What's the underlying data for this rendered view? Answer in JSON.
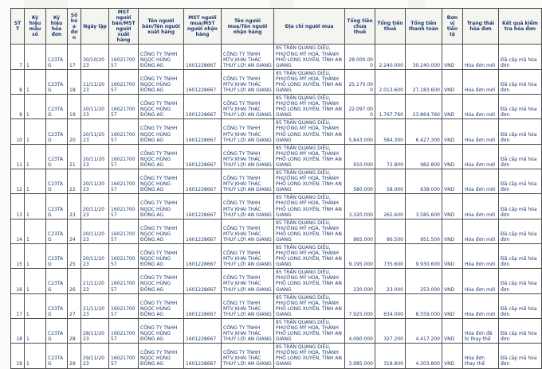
{
  "colors": {
    "text_navy": "#1e3a6d",
    "border": "#4d4d4d",
    "header_bg": "#f4f4f1",
    "page_bg": "#fbfbf9"
  },
  "table": {
    "columns": [
      "STT",
      "Ký hiệu mẫu số",
      "Ký hiệu hóa đơn",
      "Số hóa đơn",
      "Ngày lập",
      "MST người bán/MST người xuất hàng",
      "Tên người bán/Tên người xuất hàng",
      "MST người mua/MST người nhận hàng",
      "Tên người mua/Tên người nhận hàng",
      "Địa chỉ người mua",
      "Tổng tiền chưa thuế",
      "Tổng tiền thuế",
      "Tổng tiền thanh toán",
      "Đơn vị tiền tệ",
      "Trạng thái hóa đơn",
      "Kết quả kiểm tra hóa đơn"
    ],
    "rows": [
      [
        "7",
        "1",
        "C23TAG",
        "17",
        "30/10/2023",
        "1602170057",
        "CÔNG TY TNHH NGỌC HÙNG ĐỒNG AG",
        "1601228667",
        "CÔNG TY TNHH MTV KHAI THÁC THUỶ LỢI AN GIANG",
        "85 TRẦN QUANG DIỆU, PHƯỜNG MỸ HOÀ, THÀNH PHỐ LONG XUYÊN, TỈNH AN GIANG",
        "28.000.000",
        "2.240.000",
        "30.240.000",
        "VND",
        "Hóa đơn mới",
        "Đã cấp mã hóa đơn"
      ],
      [
        "8",
        "1",
        "C23TAG",
        "18",
        "11/11/2023",
        "1602170057",
        "CÔNG TY TNHH NGỌC HÙNG ĐỒNG AG",
        "1601228667",
        "CÔNG TY TNHH MTV KHAI THÁC THUỶ LỢI AN GIANG",
        "85 TRẦN QUANG DIỆU, PHƯỜNG MỸ HOÀ, THÀNH PHỐ LONG XUYÊN, TỈNH AN GIANG",
        "25.170.000",
        "2.013.600",
        "27.183.600",
        "VND",
        "Hóa đơn mới",
        "Đã cấp mã hóa đơn"
      ],
      [
        "9",
        "1",
        "C23TAG",
        "19",
        "20/11/2023",
        "1602170057",
        "CÔNG TY TNHH NGỌC HÙNG ĐỒNG AG",
        "1601228667",
        "CÔNG TY TNHH MTV KHAI THÁC THUỶ LỢI AN GIANG",
        "85 TRẦN QUANG DIỆU, PHƯỜNG MỸ HOÀ, THÀNH PHỐ LONG XUYÊN, TỈNH AN GIANG",
        "22.097.000",
        "1.767.760",
        "23.864.760",
        "VND",
        "Hóa đơn mới",
        "Đã cấp mã hóa đơn"
      ],
      [
        "10",
        "1",
        "C23TAG",
        "20",
        "20/11/2023",
        "1602170057",
        "CÔNG TY TNHH NGỌC HÙNG ĐỒNG AG",
        "1601228667",
        "CÔNG TY TNHH MTV KHAI THÁC THUỶ LỢI AN GIANG",
        "85 TRẦN QUANG DIỆU, PHƯỜNG MỸ HOÀ, THÀNH PHỐ LONG XUYÊN, TỈNH AN GIANG",
        "5.843.000",
        "584.300",
        "6.427.300",
        "VND",
        "Hóa đơn mới",
        "Đã cấp mã hóa đơn"
      ],
      [
        "11",
        "1",
        "C23TAG",
        "21",
        "20/11/2023",
        "1602170057",
        "CÔNG TY TNHH NGỌC HÙNG ĐỒNG AG",
        "1601228667",
        "CÔNG TY TNHH MTV KHAI THÁC THUỶ LỢI AN GIANG",
        "85 TRẦN QUANG DIỆU, PHƯỜNG MỸ HOÀ, THÀNH PHỐ LONG XUYÊN, TỈNH AN GIANG",
        "910.000",
        "72.800",
        "982.800",
        "VND",
        "Hóa đơn mới",
        "Đã cấp mã hóa đơn"
      ],
      [
        "12",
        "1",
        "C23TAG",
        "22",
        "20/11/2023",
        "1602170057",
        "CÔNG TY TNHH NGỌC HÙNG ĐỒNG AG",
        "1601228667",
        "CÔNG TY TNHH MTV KHAI THÁC THUỶ LỢI AN GIANG",
        "85 TRẦN QUANG DIỆU, PHƯỜNG MỸ HOÀ, THÀNH PHỐ LONG XUYÊN, TỈNH AN GIANG",
        "580.000",
        "58.000",
        "638.000",
        "VND",
        "Hóa đơn mới",
        "Đã cấp mã hóa đơn"
      ],
      [
        "13",
        "1",
        "C23TAG",
        "23",
        "20/11/2023",
        "1602170057",
        "CÔNG TY TNHH NGỌC HÙNG ĐỒNG AG",
        "1601228667",
        "CÔNG TY TNHH MTV KHAI THÁC THUỶ LỢI AN GIANG",
        "85 TRẦN QUANG DIỆU, PHƯỜNG MỸ HOÀ, THÀNH PHỐ LONG XUYÊN, TỈNH AN GIANG",
        "3.320.000",
        "265.600",
        "3.585.600",
        "VND",
        "Hóa đơn mới",
        "Đã cấp mã hóa đơn"
      ],
      [
        "14",
        "1",
        "C23TAG",
        "24",
        "20/11/2023",
        "1602170057",
        "CÔNG TY TNHH NGỌC HÙNG ĐỒNG AG",
        "1601228667",
        "CÔNG TY TNHH MTV KHAI THÁC THUỶ LỢI AN GIANG",
        "85 TRẦN QUANG DIỆU, PHƯỜNG MỸ HOÀ, THÀNH PHỐ LONG XUYÊN, TỈNH AN GIANG",
        "865.000",
        "86.500",
        "951.500",
        "VND",
        "Hóa đơn mới",
        "Đã cấp mã hóa đơn"
      ],
      [
        "15",
        "1",
        "C23TAG",
        "25",
        "20/11/2023",
        "1602170057",
        "CÔNG TY TNHH NGỌC HÙNG ĐỒNG AG",
        "1601228667",
        "CÔNG TY TNHH MTV KHAI THÁC THUỶ LỢI AN GIANG",
        "85 TRẦN QUANG DIỆU, PHƯỜNG MỸ HOÀ, THÀNH PHỐ LONG XUYÊN, TỈNH AN GIANG",
        "9.195.000",
        "735.600",
        "9.930.600",
        "VND",
        "Hóa đơn mới",
        "Đã cấp mã hóa đơn"
      ],
      [
        "16",
        "1",
        "C23TAG",
        "26",
        "21/11/2023",
        "1602170057",
        "CÔNG TY TNHH NGỌC HÙNG ĐỒNG AG",
        "1601228667",
        "CÔNG TY TNHH MTV KHAI THÁC THUỶ LỢI AN GIANG",
        "85 TRẦN QUANG DIỆU, PHƯỜNG MỸ HOÀ, THÀNH PHỐ LONG XUYÊN, TỈNH AN GIANG",
        "230.000",
        "23.000",
        "253.000",
        "VND",
        "Hóa đơn mới",
        "Đã cấp mã hóa đơn"
      ],
      [
        "17",
        "1",
        "C23TAG",
        "27",
        "21/11/2023",
        "1602170057",
        "CÔNG TY TNHH NGỌC HÙNG ĐỒNG AG",
        "1601228667",
        "CÔNG TY TNHH MTV KHAI THÁC THUỶ LỢI AN GIANG",
        "85 TRẦN QUANG DIỆU, PHƯỜNG MỸ HOÀ, THÀNH PHỐ LONG XUYÊN, TỈNH AN GIANG",
        "7.925.000",
        "634.000",
        "8.559.000",
        "VND",
        "Hóa đơn mới",
        "Đã cấp mã hóa đơn"
      ],
      [
        "18",
        "1",
        "C23TAG",
        "28",
        "28/11/2023",
        "1602170057",
        "CÔNG TY TNHH NGỌC HÙNG ĐỒNG AG",
        "1601228667",
        "CÔNG TY TNHH MTV KHAI THÁC THUỶ LỢI AN GIANG",
        "85 TRẦN QUANG DIỆU, PHƯỜNG MỸ HOÀ, THÀNH PHỐ LONG XUYÊN, TỈNH AN GIANG",
        "4.090.000",
        "327.200",
        "4.417.200",
        "VND",
        "Hóa đơn đã bị thay thế",
        "Đã cấp mã hóa đơn"
      ],
      [
        "19",
        "1",
        "C23TAG",
        "29",
        "29/11/2023",
        "1602170057",
        "CÔNG TY TNHH NGỌC HÙNG ĐỒNG AG",
        "1601228667",
        "CÔNG TY TNHH MTV KHAI THÁC THUỶ LỢI AN GIANG",
        "85 TRẦN QUANG DIỆU, PHƯỜNG MỸ HOÀ, THÀNH PHỐ LONG XUYÊN, TỈNH AN GIANG",
        "3.985.000",
        "318.800",
        "4.303.800",
        "VND",
        "Hóa đơn thay thế",
        "Đã cấp mã hóa đơn"
      ]
    ]
  }
}
